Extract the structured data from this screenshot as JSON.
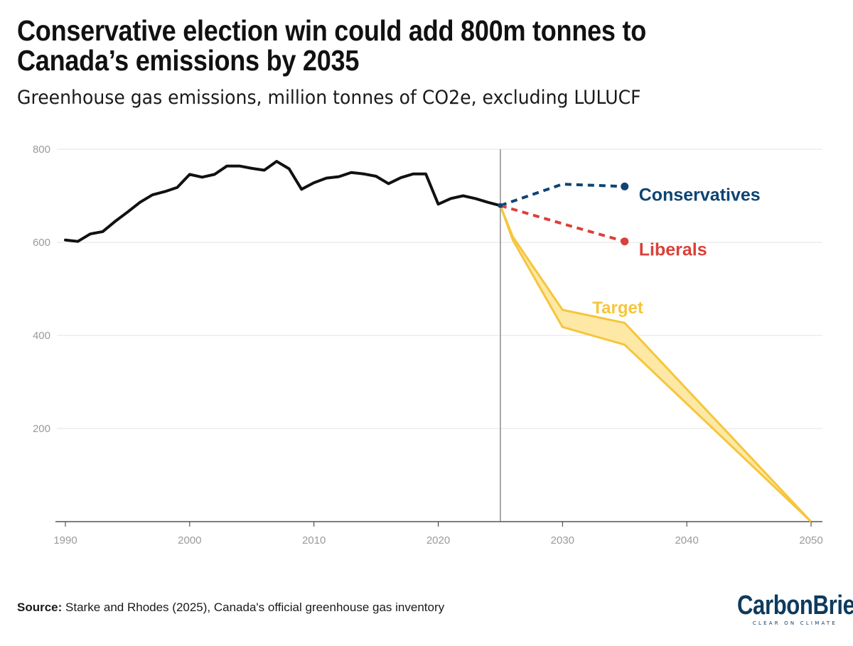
{
  "header": {
    "title": "Conservative election win could add 800m tonnes to Canada’s emissions by 2035",
    "subtitle": "Greenhouse gas emissions, million tonnes of CO2e, excluding LULUCF"
  },
  "footer": {
    "source_label": "Source:",
    "source_text": " Starke and Rhodes (2025), Canada's official greenhouse gas inventory",
    "logo_text": "CarbonBrief",
    "logo_tagline": "CLEAR ON CLIMATE"
  },
  "colors": {
    "historical": "#111111",
    "conservatives": "#0e4472",
    "liberals": "#d9413a",
    "target": "#f5c63c",
    "target_fill": "#fde8a6",
    "grid": "#e3e3e3",
    "axis_text": "#9a9a9a",
    "divider": "#555555"
  },
  "chart_data": {
    "type": "line",
    "xlim": [
      1990,
      2050
    ],
    "ylim": [
      0,
      800
    ],
    "x_ticks": [
      1990,
      2000,
      2010,
      2020,
      2030,
      2040,
      2050
    ],
    "y_ticks": [
      200,
      400,
      600,
      800
    ],
    "grid": true,
    "divider_year": 2025,
    "series": [
      {
        "name": "Historical",
        "style": "solid",
        "x": [
          1990,
          1991,
          1992,
          1993,
          1994,
          1995,
          1996,
          1997,
          1998,
          1999,
          2000,
          2001,
          2002,
          2003,
          2004,
          2005,
          2006,
          2007,
          2008,
          2009,
          2010,
          2011,
          2012,
          2013,
          2014,
          2015,
          2016,
          2017,
          2018,
          2019,
          2020,
          2021,
          2022,
          2023,
          2024,
          2025
        ],
        "values": [
          605,
          602,
          618,
          623,
          645,
          665,
          686,
          702,
          709,
          718,
          746,
          740,
          746,
          764,
          764,
          759,
          755,
          774,
          758,
          714,
          728,
          738,
          741,
          750,
          747,
          742,
          726,
          739,
          747,
          747,
          682,
          694,
          700,
          694,
          686,
          679
        ]
      },
      {
        "name": "Conservatives",
        "label": "Conservatives",
        "style": "dashed",
        "x": [
          2025,
          2030,
          2035
        ],
        "values": [
          679,
          725,
          720
        ]
      },
      {
        "name": "Liberals",
        "label": "Liberals",
        "style": "dashed",
        "x": [
          2025,
          2030,
          2035
        ],
        "values": [
          679,
          640,
          602
        ]
      },
      {
        "name": "Target",
        "label": "Target",
        "style": "band",
        "x": [
          2025,
          2026,
          2030,
          2035,
          2050
        ],
        "upper": [
          679,
          612,
          455,
          427,
          0
        ],
        "lower": [
          679,
          605,
          418,
          380,
          0
        ]
      }
    ]
  }
}
